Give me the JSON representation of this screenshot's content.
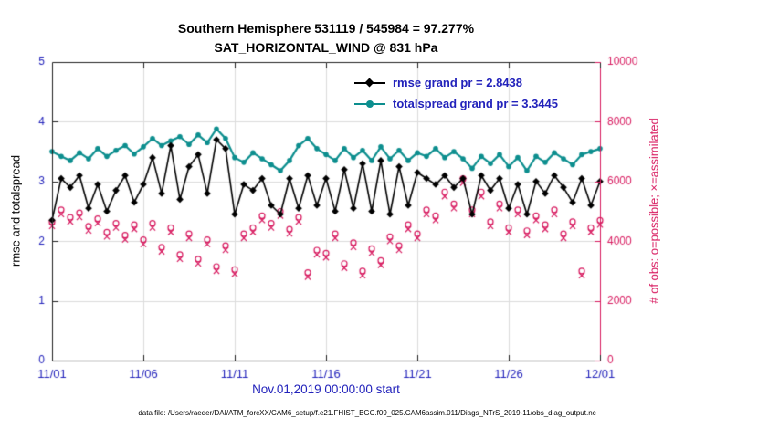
{
  "title": {
    "line1": "Southern Hemisphere 531119 / 545984 = 97.277%",
    "line2": "SAT_HORIZONTAL_WIND @ 831 hPa"
  },
  "colors": {
    "title": "#000000",
    "axis_text": "#2222bb",
    "legend_text": "#2222bb",
    "teal": "#0c8e8e",
    "black": "#000000",
    "pink": "#d81b60",
    "grid": "#dcdcdc",
    "box": "#222222",
    "background": "#ffffff"
  },
  "legend": {
    "items": [
      {
        "label": "rmse grand pr = 2.8438",
        "color": "#000000",
        "marker": "diamond"
      },
      {
        "label": "totalspread grand pr = 3.3445",
        "color": "#0c8e8e",
        "marker": "circle"
      }
    ]
  },
  "chart_data": {
    "type": "line",
    "title": "Southern Hemisphere 531119 / 545984 = 97.277% — SAT_HORIZONTAL_WIND @ 831 hPa",
    "xlabel": "Nov.01,2019 00:00:00 start",
    "ylabel_left": "rmse and totalspread",
    "ylabel_right": "# of obs: o=possible; ×=assimilated",
    "x_start": "11/01",
    "x_end": "12/01",
    "x_step_hours": 12,
    "xlim": [
      0,
      60
    ],
    "ylim": [
      0,
      5
    ],
    "y2lim": [
      0,
      10000
    ],
    "yticks": [
      0,
      1,
      2,
      3,
      4,
      5
    ],
    "y2ticks": [
      0,
      2000,
      4000,
      6000,
      8000,
      10000
    ],
    "xtick_positions": [
      0,
      10,
      20,
      30,
      40,
      50,
      60
    ],
    "xtick_labels": [
      "11/01",
      "11/06",
      "11/11",
      "11/16",
      "11/21",
      "11/26",
      "12/01"
    ],
    "grid": true,
    "legend_position": "top-center-inside",
    "series": [
      {
        "name": "rmse",
        "grand_mean": 2.8438,
        "color": "#000000",
        "marker": "diamond",
        "values": [
          2.35,
          3.05,
          2.9,
          3.1,
          2.55,
          2.95,
          2.5,
          2.85,
          3.1,
          2.65,
          2.95,
          3.4,
          2.8,
          3.6,
          2.7,
          3.25,
          3.45,
          2.8,
          3.7,
          3.55,
          2.45,
          2.95,
          2.85,
          3.05,
          2.6,
          2.45,
          3.05,
          2.55,
          3.1,
          2.6,
          3.05,
          2.5,
          3.2,
          2.55,
          3.3,
          2.5,
          3.35,
          2.45,
          3.25,
          2.6,
          3.15,
          3.05,
          2.95,
          3.1,
          2.9,
          3.05,
          2.45,
          3.1,
          2.85,
          3.05,
          2.55,
          2.95,
          2.45,
          3.0,
          2.8,
          3.1,
          2.9,
          2.65,
          3.05,
          2.6,
          3.0
        ]
      },
      {
        "name": "totalspread",
        "grand_mean": 3.3445,
        "color": "#0c8e8e",
        "marker": "circle",
        "values": [
          3.5,
          3.42,
          3.35,
          3.48,
          3.38,
          3.55,
          3.42,
          3.52,
          3.6,
          3.46,
          3.58,
          3.72,
          3.6,
          3.68,
          3.75,
          3.62,
          3.78,
          3.65,
          3.88,
          3.72,
          3.4,
          3.32,
          3.48,
          3.38,
          3.28,
          3.18,
          3.35,
          3.6,
          3.72,
          3.55,
          3.45,
          3.35,
          3.55,
          3.4,
          3.52,
          3.35,
          3.58,
          3.38,
          3.52,
          3.35,
          3.48,
          3.42,
          3.55,
          3.4,
          3.5,
          3.38,
          3.22,
          3.42,
          3.3,
          3.45,
          3.25,
          3.4,
          3.18,
          3.42,
          3.32,
          3.48,
          3.38,
          3.28,
          3.45,
          3.5,
          3.55
        ]
      }
    ],
    "right_series": [
      {
        "name": "possible",
        "color": "#d81b60",
        "marker": "circle-open",
        "values": [
          4650,
          5050,
          4800,
          4950,
          4500,
          4750,
          4300,
          4600,
          4200,
          4550,
          4050,
          4600,
          3800,
          4450,
          3550,
          4250,
          3400,
          4050,
          3150,
          3850,
          3050,
          4250,
          4450,
          4850,
          4600,
          5000,
          4400,
          4800,
          2950,
          3700,
          3600,
          4250,
          3250,
          3950,
          3000,
          3750,
          3350,
          4150,
          3850,
          4550,
          4250,
          5050,
          4850,
          5650,
          5250,
          6100,
          5050,
          5650,
          4650,
          5250,
          4450,
          5050,
          4350,
          4850,
          4550,
          5050,
          4250,
          4650,
          3000,
          4450,
          4700
        ]
      },
      {
        "name": "assimilated",
        "color": "#d81b60",
        "marker": "x",
        "values": [
          4500,
          4900,
          4650,
          4800,
          4350,
          4600,
          4150,
          4450,
          4050,
          4400,
          3900,
          4450,
          3650,
          4300,
          3400,
          4100,
          3250,
          3900,
          3000,
          3700,
          2900,
          4100,
          4300,
          4700,
          4450,
          4850,
          4250,
          4650,
          2800,
          3550,
          3450,
          4100,
          3100,
          3800,
          2850,
          3600,
          3200,
          4000,
          3700,
          4400,
          4100,
          4900,
          4700,
          5500,
          5100,
          5950,
          4900,
          5500,
          4500,
          5100,
          4300,
          4900,
          4200,
          4700,
          4400,
          4900,
          4100,
          4500,
          2850,
          4300,
          4550
        ]
      }
    ]
  },
  "footer": {
    "data_file_note": "data file: /Users/raeder/DAI/ATM_forcXX/CAM6_setup/f.e21.FHIST_BGC.f09_025.CAM6assim.011/Diags_NTrS_2019-11/obs_diag_output.nc"
  }
}
